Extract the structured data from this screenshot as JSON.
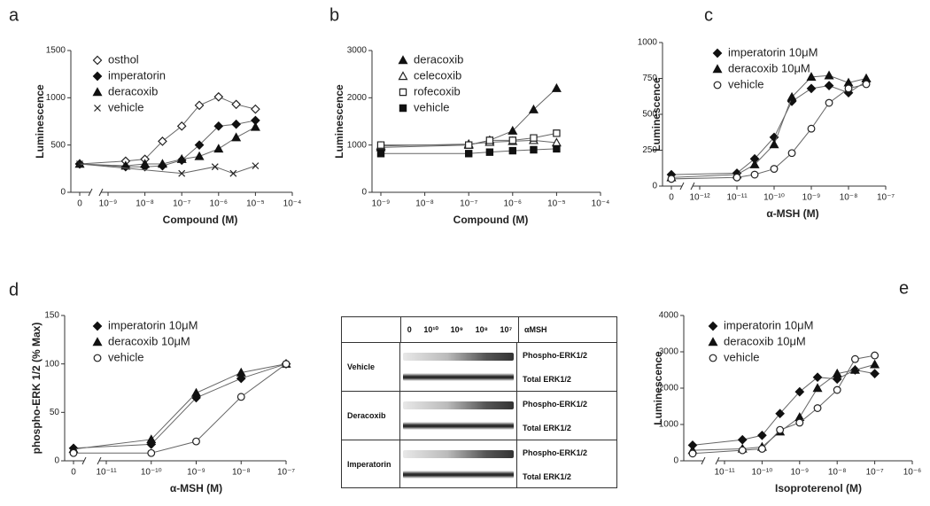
{
  "chart_data": [
    {
      "type": "line",
      "panel": "a",
      "xlabel": "Compound (M)",
      "ylabel": "Luminescence",
      "xscale": "log",
      "xlim": [
        1e-09,
        0.0001
      ],
      "xticks": [
        0,
        {
          "value": 1e-09,
          "label": "10⁻⁹"
        },
        {
          "value": 1e-08,
          "label": "10⁻⁸"
        },
        {
          "value": 1e-07,
          "label": "10⁻⁷"
        },
        {
          "value": 1e-06,
          "label": "10⁻⁶"
        },
        {
          "value": 1e-05,
          "label": "10⁻⁵"
        },
        {
          "value": 0.0001,
          "label": "10⁻⁴"
        }
      ],
      "ylim": [
        0,
        1500
      ],
      "yticks": [
        0,
        500,
        1000,
        1500
      ],
      "series": [
        {
          "name": "osthol",
          "marker": "diamond-open",
          "color": "#222222",
          "x": [
            0,
            3e-09,
            1e-08,
            3e-08,
            1e-07,
            3e-07,
            1e-06,
            3e-06,
            1e-05
          ],
          "values": [
            300,
            330,
            350,
            540,
            700,
            920,
            1010,
            930,
            880
          ]
        },
        {
          "name": "imperatorin",
          "marker": "diamond",
          "color": "#111111",
          "x": [
            0,
            3e-09,
            1e-08,
            3e-08,
            1e-07,
            3e-07,
            1e-06,
            3e-06,
            1e-05
          ],
          "values": [
            300,
            270,
            270,
            280,
            340,
            500,
            700,
            720,
            760
          ]
        },
        {
          "name": "deracoxib",
          "marker": "triangle",
          "color": "#111111",
          "x": [
            0,
            3e-09,
            1e-08,
            3e-08,
            1e-07,
            3e-07,
            1e-06,
            3e-06,
            1e-05
          ],
          "values": [
            300,
            280,
            300,
            300,
            350,
            380,
            460,
            580,
            690
          ]
        },
        {
          "name": "vehicle",
          "marker": "x",
          "color": "#222222",
          "x": [
            0,
            1e-07,
            8e-07,
            2.5e-06,
            1e-05
          ],
          "values": [
            300,
            200,
            270,
            200,
            280
          ]
        }
      ]
    },
    {
      "type": "line",
      "panel": "b",
      "xlabel": "Compound (M)",
      "ylabel": "Luminescence",
      "xscale": "log",
      "xlim": [
        1e-09,
        0.0001
      ],
      "xticks": [
        {
          "value": 1e-09,
          "label": "10⁻⁹"
        },
        {
          "value": 1e-08,
          "label": "10⁻⁸"
        },
        {
          "value": 1e-07,
          "label": "10⁻⁷"
        },
        {
          "value": 1e-06,
          "label": "10⁻⁶"
        },
        {
          "value": 1e-05,
          "label": "10⁻⁵"
        },
        {
          "value": 0.0001,
          "label": "10⁻⁴"
        }
      ],
      "ylim": [
        0,
        3000
      ],
      "yticks": [
        0,
        1000,
        2000,
        3000
      ],
      "series": [
        {
          "name": "deracoxib",
          "marker": "triangle",
          "color": "#111111",
          "x": [
            1e-09,
            1e-07,
            3e-07,
            1e-06,
            3e-06,
            1e-05
          ],
          "values": [
            950,
            1000,
            1100,
            1300,
            1750,
            2200
          ]
        },
        {
          "name": "celecoxib",
          "marker": "triangle-open",
          "color": "#222222",
          "x": [
            1e-09,
            1e-07,
            3e-07,
            1e-06,
            3e-06,
            1e-05
          ],
          "values": [
            980,
            1020,
            1060,
            1080,
            1100,
            1050
          ]
        },
        {
          "name": "rofecoxib",
          "marker": "square-open",
          "color": "#222222",
          "x": [
            1e-09,
            1e-07,
            3e-07,
            1e-06,
            3e-06,
            1e-05
          ],
          "values": [
            1000,
            1000,
            1100,
            1100,
            1150,
            1250
          ]
        },
        {
          "name": "vehicle",
          "marker": "square",
          "color": "#111111",
          "x": [
            1e-09,
            1e-07,
            3e-07,
            1e-06,
            3e-06,
            1e-05
          ],
          "values": [
            820,
            820,
            850,
            880,
            900,
            920
          ]
        }
      ]
    },
    {
      "type": "line",
      "panel": "c",
      "xlabel": "α-MSH (M)",
      "ylabel": "Luminescence",
      "xscale": "log",
      "xlim": [
        1e-12,
        1e-07
      ],
      "xticks": [
        0,
        {
          "value": 1e-12,
          "label": "10⁻¹²"
        },
        {
          "value": 1e-11,
          "label": "10⁻¹¹"
        },
        {
          "value": 1e-10,
          "label": "10⁻¹⁰"
        },
        {
          "value": 1e-09,
          "label": "10⁻⁹"
        },
        {
          "value": 1e-08,
          "label": "10⁻⁸"
        },
        {
          "value": 1e-07,
          "label": "10⁻⁷"
        }
      ],
      "ylim": [
        0,
        1000
      ],
      "yticks": [
        0,
        250,
        500,
        750,
        1000
      ],
      "series": [
        {
          "name": "imperatorin 10μM",
          "marker": "diamond",
          "color": "#111111",
          "x": [
            0,
            1e-11,
            3e-11,
            1e-10,
            3e-10,
            1e-09,
            3e-09,
            1e-08,
            3e-08
          ],
          "values": [
            80,
            90,
            190,
            340,
            590,
            680,
            700,
            650,
            730
          ]
        },
        {
          "name": "deracoxib 10μM",
          "marker": "triangle",
          "color": "#111111",
          "x": [
            0,
            1e-11,
            3e-11,
            1e-10,
            3e-10,
            1e-09,
            3e-09,
            1e-08,
            3e-08
          ],
          "values": [
            60,
            80,
            150,
            290,
            620,
            760,
            770,
            720,
            750
          ]
        },
        {
          "name": "vehicle",
          "marker": "circle-open",
          "color": "#222222",
          "x": [
            0,
            1e-11,
            3e-11,
            1e-10,
            3e-10,
            1e-09,
            3e-09,
            1e-08,
            3e-08
          ],
          "values": [
            50,
            60,
            80,
            120,
            230,
            400,
            580,
            680,
            710
          ]
        }
      ]
    },
    {
      "type": "line",
      "panel": "d",
      "xlabel": "α-MSH (M)",
      "ylabel": "phospho-ERK 1/2 (% Max)",
      "xscale": "log",
      "xlim": [
        1e-11,
        1e-07
      ],
      "xticks": [
        0,
        {
          "value": 1e-11,
          "label": "10⁻¹¹"
        },
        {
          "value": 1e-10,
          "label": "10⁻¹⁰"
        },
        {
          "value": 1e-09,
          "label": "10⁻⁹"
        },
        {
          "value": 1e-08,
          "label": "10⁻⁸"
        },
        {
          "value": 1e-07,
          "label": "10⁻⁷"
        }
      ],
      "ylim": [
        0,
        150
      ],
      "yticks": [
        0,
        50,
        100,
        150
      ],
      "series": [
        {
          "name": "imperatorin 10μM",
          "marker": "diamond",
          "color": "#111111",
          "x": [
            0,
            1e-10,
            1e-09,
            1e-08,
            1e-07
          ],
          "values": [
            13,
            17,
            65,
            85,
            100
          ]
        },
        {
          "name": "deracoxib 10μM",
          "marker": "triangle",
          "color": "#111111",
          "x": [
            0,
            1e-10,
            1e-09,
            1e-08,
            1e-07
          ],
          "values": [
            12,
            22,
            70,
            91,
            100
          ]
        },
        {
          "name": "vehicle",
          "marker": "circle-open",
          "color": "#222222",
          "x": [
            0,
            1e-10,
            1e-09,
            1e-08,
            1e-07
          ],
          "values": [
            8,
            8,
            20,
            66,
            100
          ]
        }
      ]
    },
    {
      "type": "line",
      "panel": "e",
      "xlabel": "Isoproterenol (M)",
      "ylabel": "Luminescence",
      "xscale": "log",
      "xlim": [
        1e-11,
        1e-06
      ],
      "xticks": [
        {
          "value": 1e-11,
          "label": "10⁻¹¹"
        },
        {
          "value": 1e-10,
          "label": "10⁻¹⁰"
        },
        {
          "value": 1e-09,
          "label": "10⁻⁹"
        },
        {
          "value": 1e-08,
          "label": "10⁻⁸"
        },
        {
          "value": 1e-07,
          "label": "10⁻⁷"
        },
        {
          "value": 1e-06,
          "label": "10⁻⁶"
        }
      ],
      "ylim": [
        0,
        4000
      ],
      "yticks": [
        0,
        1000,
        2000,
        3000,
        4000
      ],
      "series": [
        {
          "name": "imperatorin 10μM",
          "marker": "diamond",
          "color": "#111111",
          "x": [
            0,
            3e-11,
            1e-10,
            3e-10,
            1e-09,
            3e-09,
            1e-08,
            3e-08,
            1e-07
          ],
          "values": [
            430,
            580,
            700,
            1300,
            1900,
            2300,
            2250,
            2500,
            2400
          ]
        },
        {
          "name": "deracoxib 10μM",
          "marker": "triangle",
          "color": "#111111",
          "x": [
            0,
            3e-11,
            1e-10,
            3e-10,
            1e-09,
            3e-09,
            1e-08,
            3e-08,
            1e-07
          ],
          "values": [
            290,
            330,
            380,
            800,
            1200,
            2000,
            2400,
            2500,
            2650
          ]
        },
        {
          "name": "vehicle",
          "marker": "circle-open",
          "color": "#222222",
          "x": [
            0,
            3e-11,
            1e-10,
            3e-10,
            1e-09,
            3e-09,
            1e-08,
            3e-08,
            1e-07
          ],
          "values": [
            200,
            290,
            330,
            850,
            1050,
            1450,
            1950,
            2800,
            2900
          ]
        }
      ]
    }
  ],
  "blot": {
    "header": [
      "0",
      "10¹⁰",
      "10⁹",
      "10⁸",
      "10⁷",
      "αMSH"
    ],
    "rows": [
      {
        "label": "Vehicle",
        "bands": [
          "Phospho-ERK1/2",
          "Total ERK1/2"
        ]
      },
      {
        "label": "Deracoxib",
        "bands": [
          "Phospho-ERK1/2",
          "Total ERK1/2"
        ]
      },
      {
        "label": "Imperatorin",
        "bands": [
          "Phospho-ERK1/2",
          "Total ERK1/2"
        ]
      }
    ]
  }
}
